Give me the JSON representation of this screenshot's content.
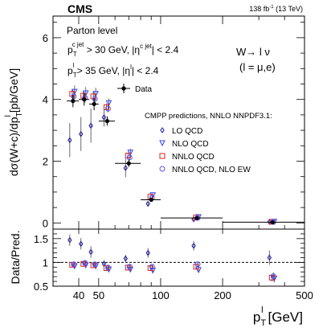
{
  "chart_data": {
    "type": "scatter",
    "x_scale": "log",
    "xlim": [
      30,
      500
    ],
    "xlabel_main": "p",
    "xlabel_sub": "T",
    "xlabel_sup": "l",
    "xlabel_unit": "[GeV]",
    "ylabel_top": "dσ(W+c)/dp",
    "ylabel_top_sub": "T",
    "ylabel_top_sup": "l",
    "ylabel_top_unit": "[pb/GeV]",
    "ylabel_bottom": "Data/Pred.",
    "header_left": "CMS",
    "header_right": "138 fb",
    "header_right_sup": "-1",
    "header_right_tail": " (13 TeV)",
    "texts": {
      "level": "Parton level",
      "cut1_main": "p",
      "cut1_sub": "T",
      "cut1_sup": "c jet",
      "cut1_mid": " > 30 GeV, |η",
      "cut1_sup2": "c jet",
      "cut1_tail": "| < 2.4",
      "cut2_main": "p",
      "cut2_sub": "T",
      "cut2_sup": "l",
      "cut2_mid": " > 35 GeV, |η",
      "cut2_sup2": "l",
      "cut2_tail": "| < 2.4",
      "process": "W→ l ν",
      "process_sub": "(l = μ,e)",
      "pred_title": "CMPP predictions, NNLO NNPDF3.1:"
    },
    "top": {
      "ylim": [
        -0.2,
        6.7
      ],
      "yticks": [
        0,
        2,
        4,
        6
      ],
      "data": [
        {
          "x": 37.5,
          "xlo": 35,
          "xhi": 40,
          "y": 3.95,
          "err": 0.2
        },
        {
          "x": 42.5,
          "xlo": 40,
          "xhi": 45,
          "y": 4.0,
          "err": 0.2
        },
        {
          "x": 47.5,
          "xlo": 45,
          "xhi": 50,
          "y": 3.85,
          "err": 0.2
        },
        {
          "x": 55,
          "xlo": 50,
          "xhi": 60,
          "y": 3.3,
          "err": 0.15
        },
        {
          "x": 70,
          "xlo": 60,
          "xhi": 80,
          "y": 1.93,
          "err": 0.12
        },
        {
          "x": 90,
          "xlo": 80,
          "xhi": 100,
          "y": 0.75,
          "err": 0.06
        },
        {
          "x": 150,
          "xlo": 100,
          "xhi": 200,
          "y": 0.16,
          "err": 0.012
        },
        {
          "x": 350,
          "xlo": 200,
          "xhi": 500,
          "y": 0.025,
          "err": 0.004
        }
      ],
      "series": [
        {
          "name": "LO QCD",
          "marker": "diamond",
          "color": "#1a1aa6",
          "x": [
            37.5,
            42.5,
            47.5,
            55,
            70,
            90,
            150,
            350
          ],
          "y": [
            2.68,
            2.88,
            3.15,
            3.42,
            1.78,
            0.62,
            0.12,
            0.035
          ],
          "err": [
            0.55,
            0.55,
            0.55,
            0.3,
            0.3,
            0.08,
            0.03,
            0.008
          ]
        },
        {
          "name": "NLO QCD",
          "marker": "triangle",
          "color": "#3344ee",
          "x": [
            37.5,
            42.5,
            47.5,
            55,
            70,
            90,
            150,
            350
          ],
          "y": [
            4.25,
            4.2,
            4.18,
            3.88,
            2.28,
            0.9,
            0.19,
            0.04
          ],
          "err": [
            0.2,
            0.2,
            0.2,
            0.15,
            0.12,
            0.06,
            0.02,
            0.005
          ]
        },
        {
          "name": "NNLO QCD",
          "marker": "square",
          "color": "#dd2222",
          "x": [
            37.5,
            42.5,
            47.5,
            55,
            70,
            90,
            150,
            350
          ],
          "y": [
            4.18,
            4.12,
            4.1,
            3.75,
            2.18,
            0.85,
            0.175,
            0.038
          ],
          "err": [
            0.15,
            0.15,
            0.15,
            0.12,
            0.1,
            0.05,
            0.015,
            0.004
          ]
        },
        {
          "name": "NNLO QCD, NLO EW",
          "marker": "circle",
          "color": "#5555ff",
          "x": [
            37.5,
            42.5,
            47.5,
            55,
            70,
            90,
            150,
            350
          ],
          "y": [
            4.1,
            4.05,
            4.02,
            3.7,
            2.12,
            0.82,
            0.165,
            0.035
          ],
          "err": [
            0.15,
            0.15,
            0.15,
            0.12,
            0.1,
            0.05,
            0.015,
            0.004
          ]
        }
      ],
      "legend_data": "Data"
    },
    "bottom": {
      "ylim": [
        0.5,
        1.7
      ],
      "yticks": [
        0.5,
        1,
        1.5
      ],
      "ytick_labels": [
        "0.5",
        "1",
        "1.5"
      ],
      "xticks": [
        40,
        50,
        100,
        200,
        500
      ],
      "xtick_labels": [
        "40",
        "50",
        "100",
        "200",
        "500"
      ],
      "minor_xticks": [
        30,
        60,
        70,
        80,
        90,
        300,
        400
      ],
      "ref_line": 1.0,
      "series": [
        {
          "name": "LO QCD",
          "marker": "diamond",
          "x": [
            37.5,
            42.5,
            47.5,
            55,
            70,
            90,
            150,
            350
          ],
          "y": [
            1.47,
            1.39,
            1.22,
            0.97,
            1.08,
            1.2,
            1.35,
            1.1
          ],
          "err": [
            0.12,
            0.12,
            0.12,
            0.08,
            0.08,
            0.1,
            0.1,
            0.15
          ]
        },
        {
          "name": "NLO QCD",
          "marker": "triangle",
          "x": [
            37.5,
            42.5,
            47.5,
            55,
            70,
            90,
            150,
            350
          ],
          "y": [
            0.92,
            0.94,
            0.92,
            0.85,
            0.85,
            0.83,
            0.84,
            0.66
          ],
          "err": [
            0.05,
            0.05,
            0.05,
            0.05,
            0.05,
            0.05,
            0.06,
            0.08
          ]
        },
        {
          "name": "NNLO QCD",
          "marker": "square",
          "x": [
            37.5,
            42.5,
            47.5,
            55,
            70,
            90,
            150,
            350
          ],
          "y": [
            0.95,
            0.97,
            0.94,
            0.88,
            0.89,
            0.88,
            0.91,
            0.68
          ],
          "err": [
            0.05,
            0.05,
            0.05,
            0.05,
            0.05,
            0.05,
            0.06,
            0.08
          ]
        },
        {
          "name": "NNLO QCD, NLO EW",
          "marker": "circle",
          "x": [
            37.5,
            42.5,
            47.5,
            55,
            70,
            90,
            150,
            350
          ],
          "y": [
            0.96,
            0.99,
            0.96,
            0.89,
            0.91,
            0.91,
            0.96,
            0.71
          ],
          "err": [
            0.05,
            0.05,
            0.05,
            0.05,
            0.05,
            0.05,
            0.06,
            0.08
          ]
        }
      ]
    }
  }
}
